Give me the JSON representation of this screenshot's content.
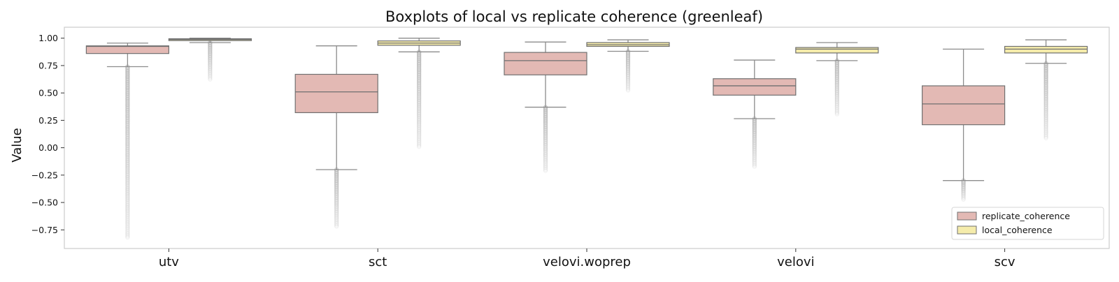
{
  "chart_data": {
    "type": "boxplot",
    "title": "Boxplots of local vs replicate coherence (greenleaf)",
    "xlabel": "",
    "ylabel": "Value",
    "ylim": [
      -0.92,
      1.1
    ],
    "yticks": [
      -0.75,
      -0.5,
      -0.25,
      0.0,
      0.25,
      0.5,
      0.75,
      1.0
    ],
    "ytick_labels": [
      "−0.75",
      "−0.50",
      "−0.25",
      "0.00",
      "0.25",
      "0.50",
      "0.75",
      "1.00"
    ],
    "categories": [
      "utv",
      "sct",
      "velovi.woprep",
      "velovi",
      "scv"
    ],
    "grid": false,
    "legend_position": "lower-right",
    "series": [
      {
        "name": "replicate_coherence",
        "color": "#e3b9b4",
        "boxes": [
          {
            "whisker_low": 0.74,
            "q1": 0.86,
            "median": 0.925,
            "q3": 0.93,
            "whisker_high": 0.955,
            "outlier_low_min": -0.82,
            "outlier_low_max": 0.74,
            "outlier_high_max": null
          },
          {
            "whisker_low": -0.2,
            "q1": 0.32,
            "median": 0.51,
            "q3": 0.67,
            "whisker_high": 0.93,
            "outlier_low_min": -0.73,
            "outlier_low_max": -0.2,
            "outlier_high_max": null
          },
          {
            "whisker_low": 0.37,
            "q1": 0.665,
            "median": 0.795,
            "q3": 0.87,
            "whisker_high": 0.965,
            "outlier_low_min": -0.22,
            "outlier_low_max": 0.37,
            "outlier_high_max": null
          },
          {
            "whisker_low": 0.265,
            "q1": 0.48,
            "median": 0.565,
            "q3": 0.63,
            "whisker_high": 0.8,
            "outlier_low_min": -0.18,
            "outlier_low_max": 0.265,
            "outlier_high_max": null
          },
          {
            "whisker_low": -0.3,
            "q1": 0.21,
            "median": 0.4,
            "q3": 0.565,
            "whisker_high": 0.9,
            "outlier_low_min": -0.48,
            "outlier_low_max": -0.3,
            "outlier_high_max": null
          }
        ]
      },
      {
        "name": "local_coherence",
        "color": "#f5ecab",
        "boxes": [
          {
            "whisker_low": 0.96,
            "q1": 0.978,
            "median": 0.988,
            "q3": 0.995,
            "whisker_high": 1.0,
            "outlier_low_min": 0.62,
            "outlier_low_max": 0.96,
            "outlier_high_max": null
          },
          {
            "whisker_low": 0.875,
            "q1": 0.935,
            "median": 0.955,
            "q3": 0.975,
            "whisker_high": 1.0,
            "outlier_low_min": 0.0,
            "outlier_low_max": 0.875,
            "outlier_high_max": null
          },
          {
            "whisker_low": 0.88,
            "q1": 0.925,
            "median": 0.94,
            "q3": 0.96,
            "whisker_high": 0.985,
            "outlier_low_min": 0.52,
            "outlier_low_max": 0.88,
            "outlier_high_max": null
          },
          {
            "whisker_low": 0.795,
            "q1": 0.865,
            "median": 0.9,
            "q3": 0.915,
            "whisker_high": 0.96,
            "outlier_low_min": 0.3,
            "outlier_low_max": 0.795,
            "outlier_high_max": null
          },
          {
            "whisker_low": 0.77,
            "q1": 0.865,
            "median": 0.9,
            "q3": 0.925,
            "whisker_high": 0.985,
            "outlier_low_min": 0.08,
            "outlier_low_max": 0.77,
            "outlier_high_max": null
          }
        ]
      }
    ],
    "colors": {
      "box_edge": "#707070",
      "whisker": "#8c8c8c",
      "outlier": "#b4b4b4",
      "frame": "#cccccc",
      "text": "#000000"
    }
  }
}
